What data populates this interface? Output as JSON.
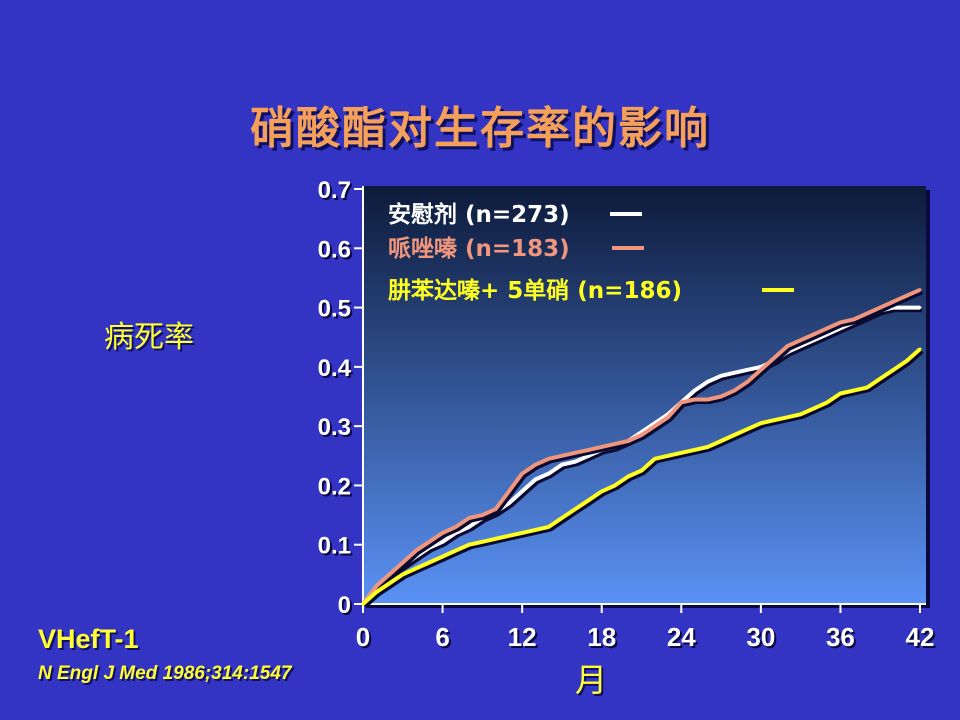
{
  "title": "硝酸酯对生存率的影响",
  "study_name": "VHefT-1",
  "citation": "N Engl J Med 1986;314:1547",
  "colors": {
    "background": "#3333c4",
    "title": "#f5a05a",
    "label": "#ffff33",
    "tick": "#ffffff",
    "plot_top": "#0d1a3a",
    "plot_bottom": "#5a92f5"
  },
  "chart_data": {
    "type": "line",
    "title": "硝酸酯对生存率的影响",
    "xlabel": "月",
    "ylabel": "病死率",
    "xlim": [
      0,
      42
    ],
    "ylim": [
      0,
      0.7
    ],
    "x_ticks": [
      "0",
      "6",
      "12",
      "18",
      "24",
      "30",
      "36",
      "42"
    ],
    "y_ticks": [
      "0",
      "0.1",
      "0.2",
      "0.3",
      "0.4",
      "0.5",
      "0.6",
      "0.7"
    ],
    "legend_position": "top-left",
    "series": [
      {
        "name": "安慰剂 (n=273)",
        "color": "#ffffff",
        "x": [
          0,
          1,
          2,
          3,
          4,
          5,
          6,
          7,
          8,
          9,
          10,
          11,
          12,
          13,
          14,
          15,
          16,
          17,
          18,
          19,
          20,
          21,
          22,
          23,
          24,
          25,
          26,
          27,
          28,
          29,
          30,
          31,
          32,
          33,
          34,
          35,
          36,
          37,
          38,
          39,
          40,
          41,
          42
        ],
        "y": [
          0,
          0.03,
          0.05,
          0.065,
          0.08,
          0.095,
          0.105,
          0.12,
          0.13,
          0.145,
          0.155,
          0.17,
          0.19,
          0.21,
          0.22,
          0.235,
          0.24,
          0.25,
          0.26,
          0.265,
          0.275,
          0.29,
          0.305,
          0.32,
          0.34,
          0.36,
          0.375,
          0.385,
          0.39,
          0.395,
          0.4,
          0.41,
          0.425,
          0.435,
          0.445,
          0.455,
          0.465,
          0.475,
          0.485,
          0.495,
          0.5,
          0.5,
          0.5
        ]
      },
      {
        "name": "哌唑嗪 (n=183)",
        "color": "#f0967d",
        "x": [
          0,
          1,
          2,
          3,
          4,
          5,
          6,
          7,
          8,
          9,
          10,
          11,
          12,
          13,
          14,
          15,
          16,
          17,
          18,
          19,
          20,
          21,
          22,
          23,
          24,
          25,
          26,
          27,
          28,
          29,
          30,
          31,
          32,
          33,
          34,
          35,
          36,
          37,
          38,
          39,
          40,
          41,
          42
        ],
        "y": [
          0,
          0.03,
          0.05,
          0.07,
          0.09,
          0.105,
          0.12,
          0.13,
          0.145,
          0.15,
          0.16,
          0.19,
          0.22,
          0.235,
          0.245,
          0.25,
          0.255,
          0.26,
          0.265,
          0.27,
          0.275,
          0.285,
          0.3,
          0.315,
          0.34,
          0.345,
          0.345,
          0.35,
          0.36,
          0.375,
          0.395,
          0.415,
          0.435,
          0.445,
          0.455,
          0.465,
          0.475,
          0.48,
          0.49,
          0.5,
          0.51,
          0.52,
          0.53
        ]
      },
      {
        "name": "肼苯达嗪+ 5单硝 (n=186)",
        "color": "#ffff22",
        "x": [
          0,
          1,
          2,
          3,
          4,
          5,
          6,
          7,
          8,
          9,
          10,
          11,
          12,
          13,
          14,
          15,
          16,
          17,
          18,
          19,
          20,
          21,
          22,
          23,
          24,
          25,
          26,
          27,
          28,
          29,
          30,
          31,
          32,
          33,
          34,
          35,
          36,
          37,
          38,
          39,
          40,
          41,
          42
        ],
        "y": [
          0,
          0.02,
          0.035,
          0.05,
          0.06,
          0.07,
          0.08,
          0.09,
          0.1,
          0.105,
          0.11,
          0.115,
          0.12,
          0.125,
          0.13,
          0.145,
          0.16,
          0.175,
          0.19,
          0.2,
          0.215,
          0.225,
          0.245,
          0.25,
          0.255,
          0.26,
          0.265,
          0.275,
          0.285,
          0.295,
          0.305,
          0.31,
          0.315,
          0.32,
          0.33,
          0.34,
          0.355,
          0.36,
          0.365,
          0.38,
          0.395,
          0.41,
          0.43
        ]
      }
    ]
  }
}
